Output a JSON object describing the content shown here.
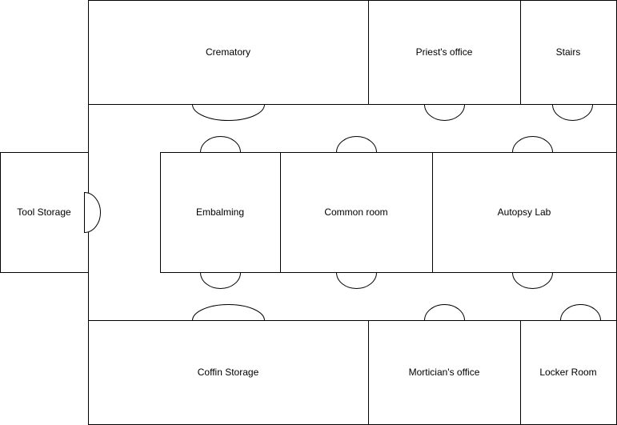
{
  "rooms": {
    "crematory": "Crematory",
    "priests_office": "Priest's office",
    "stairs": "Stairs",
    "tool_storage": "Tool Storage",
    "embalming": "Embalming",
    "common_room": "Common room",
    "autopsy_lab": "Autopsy Lab",
    "coffin_storage": "Coffin Storage",
    "morticians_office": "Mortician's office",
    "locker_room": "Locker Room"
  }
}
